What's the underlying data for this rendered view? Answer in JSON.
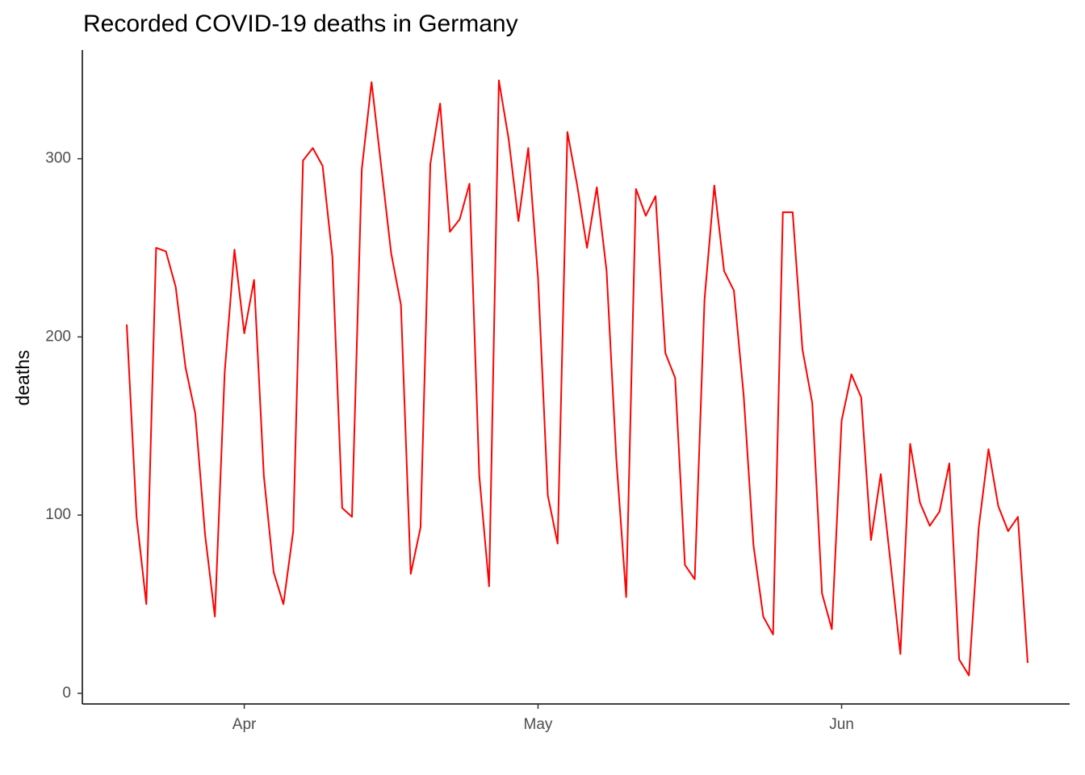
{
  "chart_data": {
    "type": "line",
    "title": "Recorded COVID-19 deaths in Germany",
    "y_label": "deaths",
    "categories": [
      null,
      null,
      null,
      null,
      null,
      null,
      null,
      null,
      null,
      null,
      null,
      null,
      "Apr",
      null,
      null,
      null,
      null,
      null,
      null,
      null,
      null,
      null,
      null,
      null,
      null,
      null,
      null,
      null,
      null,
      null,
      null,
      null,
      null,
      null,
      null,
      null,
      null,
      null,
      null,
      null,
      null,
      null,
      "May",
      null,
      null,
      null,
      null,
      null,
      null,
      null,
      null,
      null,
      null,
      null,
      null,
      null,
      null,
      null,
      null,
      null,
      null,
      null,
      null,
      null,
      null,
      null,
      null,
      null,
      null,
      null,
      null,
      null,
      null,
      "Jun",
      null,
      null,
      null,
      null,
      null,
      null,
      null,
      null,
      null,
      null,
      null,
      null,
      null,
      null,
      null,
      null,
      null,
      null,
      null
    ],
    "series": [
      {
        "name": "deaths",
        "color": "#ff0000",
        "values": [
          207,
          99,
          50,
          250,
          248,
          228,
          183,
          157,
          89,
          43,
          180,
          249,
          202,
          232,
          122,
          68,
          50,
          91,
          299,
          306,
          296,
          245,
          104,
          99,
          294,
          343,
          295,
          247,
          218,
          67,
          93,
          297,
          331,
          259,
          266,
          286,
          122,
          60,
          344,
          311,
          265,
          306,
          233,
          111,
          84,
          315,
          285,
          250,
          284,
          237,
          131,
          54,
          283,
          268,
          279,
          191,
          177,
          72,
          64,
          221,
          285,
          237,
          226,
          167,
          83,
          43,
          33,
          270,
          270,
          193,
          163,
          56,
          36,
          153,
          179,
          166,
          86,
          123,
          73,
          22,
          140,
          107,
          94,
          102,
          129,
          19,
          10,
          93,
          137,
          105,
          91,
          99,
          17
        ]
      }
    ],
    "ylim": [
      -6,
      361
    ],
    "yticks": [
      0,
      100,
      200,
      300
    ],
    "grid": false
  }
}
